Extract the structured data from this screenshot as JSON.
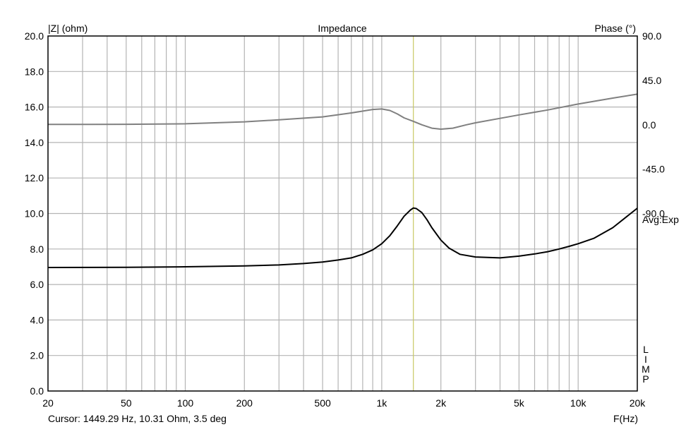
{
  "chart_data": {
    "type": "line",
    "title": "Impedance",
    "left_axis": {
      "label": "|Z| (ohm)",
      "ylim": [
        0,
        20
      ],
      "ticks": [
        "20.0",
        "18.0",
        "16.0",
        "14.0",
        "12.0",
        "10.0",
        "8.0",
        "6.0",
        "4.0",
        "2.0",
        "0.0"
      ]
    },
    "right_axis": {
      "label": "Phase (°)",
      "ylim": [
        -270,
        90
      ],
      "ticks": [
        "90.0",
        "45.0",
        "0.0",
        "-45.0",
        "-90.0"
      ]
    },
    "x_axis": {
      "label": "F(Hz)",
      "scale": "log",
      "xlim": [
        20,
        20000
      ],
      "tick_values": [
        20,
        50,
        100,
        200,
        500,
        1000,
        2000,
        5000,
        10000,
        20000
      ],
      "tick_labels": [
        "20",
        "50",
        "100",
        "200",
        "500",
        "1k",
        "2k",
        "5k",
        "10k",
        "20k"
      ]
    },
    "grid": true,
    "cursor": {
      "freq_hz": 1449.29,
      "color": "#c8c864"
    },
    "series": [
      {
        "axis": "left",
        "color": "#000000",
        "points": [
          [
            20,
            6.96
          ],
          [
            50,
            6.97
          ],
          [
            100,
            7.0
          ],
          [
            200,
            7.05
          ],
          [
            300,
            7.1
          ],
          [
            400,
            7.18
          ],
          [
            500,
            7.27
          ],
          [
            600,
            7.38
          ],
          [
            700,
            7.5
          ],
          [
            800,
            7.7
          ],
          [
            900,
            7.95
          ],
          [
            1000,
            8.3
          ],
          [
            1100,
            8.75
          ],
          [
            1200,
            9.3
          ],
          [
            1300,
            9.85
          ],
          [
            1400,
            10.2
          ],
          [
            1449,
            10.31
          ],
          [
            1500,
            10.28
          ],
          [
            1600,
            10.05
          ],
          [
            1700,
            9.65
          ],
          [
            1800,
            9.2
          ],
          [
            2000,
            8.5
          ],
          [
            2200,
            8.05
          ],
          [
            2500,
            7.7
          ],
          [
            3000,
            7.55
          ],
          [
            4000,
            7.5
          ],
          [
            5000,
            7.6
          ],
          [
            6000,
            7.72
          ],
          [
            7000,
            7.85
          ],
          [
            8000,
            8.0
          ],
          [
            9000,
            8.15
          ],
          [
            10000,
            8.3
          ],
          [
            12000,
            8.6
          ],
          [
            15000,
            9.2
          ],
          [
            20000,
            10.3
          ]
        ]
      },
      {
        "axis": "right",
        "color": "#808080",
        "points": [
          [
            20,
            0.3
          ],
          [
            50,
            0.5
          ],
          [
            100,
            1.0
          ],
          [
            200,
            3.0
          ],
          [
            300,
            5.0
          ],
          [
            500,
            8.0
          ],
          [
            700,
            12.0
          ],
          [
            900,
            15.5
          ],
          [
            1000,
            16.0
          ],
          [
            1100,
            14.5
          ],
          [
            1200,
            11.0
          ],
          [
            1300,
            7.0
          ],
          [
            1449,
            3.5
          ],
          [
            1600,
            0.0
          ],
          [
            1800,
            -3.5
          ],
          [
            2000,
            -4.5
          ],
          [
            2300,
            -3.5
          ],
          [
            2700,
            0.0
          ],
          [
            3000,
            2.0
          ],
          [
            4000,
            6.5
          ],
          [
            5000,
            10.0
          ],
          [
            7000,
            15.0
          ],
          [
            10000,
            21.0
          ],
          [
            15000,
            27.0
          ],
          [
            20000,
            31.0
          ]
        ]
      }
    ]
  },
  "footer": {
    "cursor_readout": "Cursor: 1449.29 Hz, 10.31 Ohm, 3.5 deg",
    "freq_label": "F(Hz)"
  },
  "side": {
    "avg_label": "Avg:Exp",
    "limp_label": "LIMP",
    "limp_letters": [
      "L",
      "I",
      "M",
      "P"
    ]
  }
}
